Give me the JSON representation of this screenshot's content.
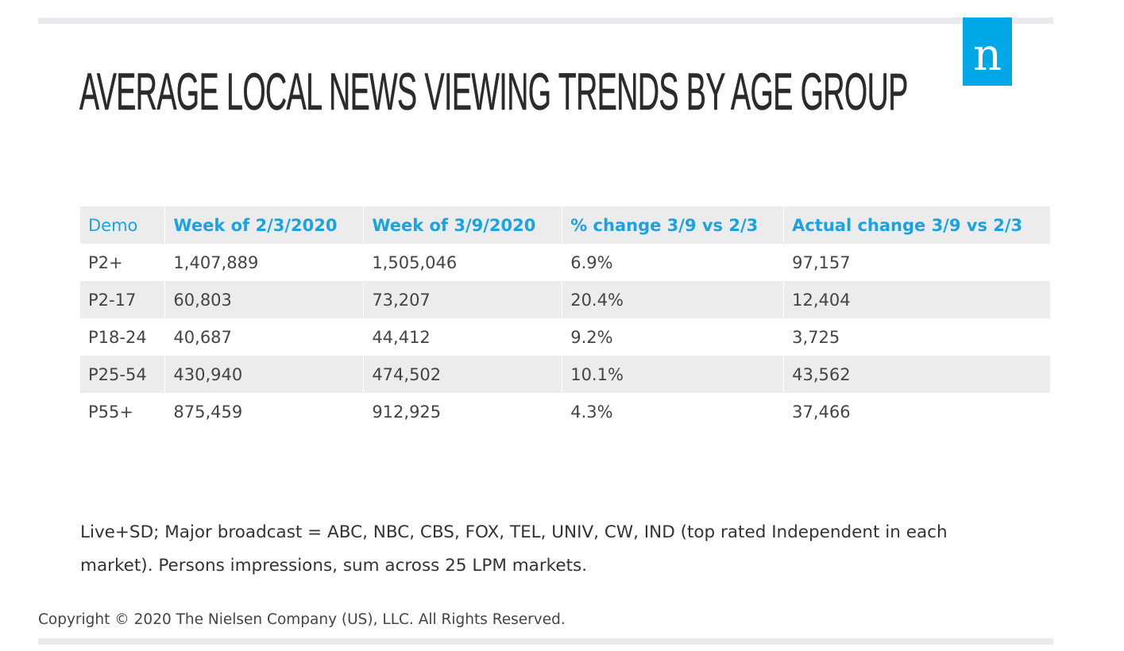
{
  "logo": {
    "letter": "n",
    "color": "#00a8e8"
  },
  "title": "AVERAGE LOCAL NEWS VIEWING TRENDS BY AGE GROUP",
  "chart_data": {
    "type": "table",
    "title": "AVERAGE LOCAL NEWS VIEWING TRENDS BY AGE GROUP",
    "columns": [
      "Demo",
      "Week of 2/3/2020",
      "Week of 3/9/2020",
      "% change 3/9 vs 2/3",
      "Actual change 3/9 vs 2/3"
    ],
    "rows": [
      [
        "P2+",
        "1,407,889",
        "1,505,046",
        "6.9%",
        "97,157"
      ],
      [
        "P2-17",
        "60,803",
        "73,207",
        "20.4%",
        "12,404"
      ],
      [
        "P18-24",
        "40,687",
        "44,412",
        "9.2%",
        "3,725"
      ],
      [
        "P25-54",
        "430,940",
        "474,502",
        "10.1%",
        "43,562"
      ],
      [
        "P55+",
        "875,459",
        "912,925",
        "4.3%",
        "37,466"
      ]
    ]
  },
  "footnote": "Live+SD; Major broadcast = ABC, NBC, CBS, FOX, TEL, UNIV, CW, IND (top rated Independent in each market). Persons impressions, sum across 25 LPM markets.",
  "copyright": "Copyright © 2020 The Nielsen Company (US), LLC. All Rights Reserved.",
  "colors": {
    "header_text": "#1aa3e0",
    "stripe": "#ececec",
    "rule": "#e8eaed"
  }
}
